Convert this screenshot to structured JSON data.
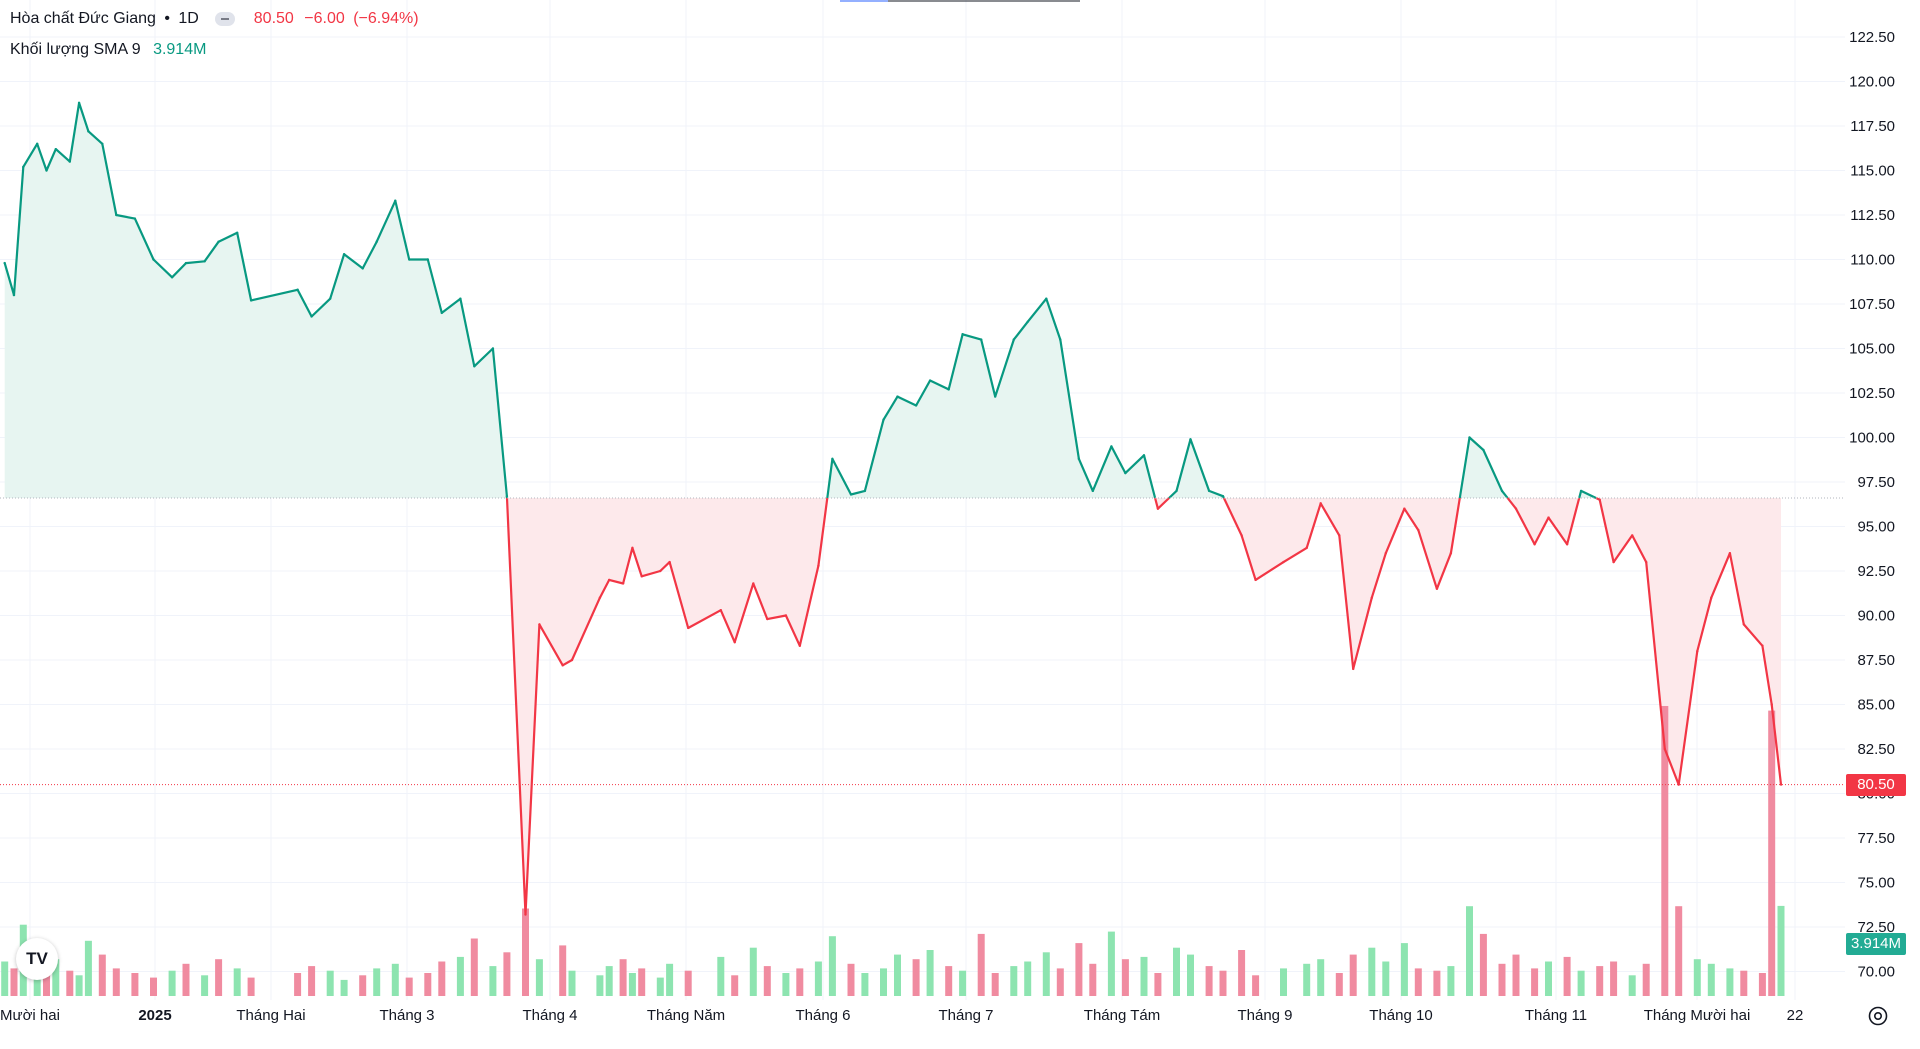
{
  "legend": {
    "symbol": "Hòa chất Đức Giang",
    "interval": "1D",
    "last_price": "80.50",
    "change": "−6.00",
    "change_pct": "(−6.94%)",
    "volume_label": "Khối lượng SMA 9",
    "volume_value": "3.914M"
  },
  "price_scale": {
    "labels": [
      "122.50",
      "120.00",
      "117.50",
      "115.00",
      "112.50",
      "110.00",
      "107.50",
      "105.00",
      "102.50",
      "100.00",
      "97.50",
      "95.00",
      "92.50",
      "90.00",
      "87.50",
      "85.00",
      "82.50",
      "80.00",
      "77.50",
      "75.00",
      "72.50",
      "70.00"
    ],
    "last_price_tag": "80.50",
    "volume_tag": "3.914M"
  },
  "time_scale": {
    "labels": [
      "Mười hai",
      "2025",
      "Tháng Hai",
      "Tháng 3",
      "Tháng 4",
      "Tháng Năm",
      "Tháng 6",
      "Tháng 7",
      "Tháng Tám",
      "Tháng 9",
      "Tháng 10",
      "Tháng 11",
      "Tháng Mười hai",
      "22"
    ]
  },
  "colors": {
    "up_line": "#089981",
    "down_line": "#f23645",
    "up_fill": "#e7f5f1",
    "down_fill": "#fde9eb",
    "vol_up": "#8de4b0",
    "vol_down": "#f08ba0",
    "grid": "#f0f3fa"
  },
  "icons": [
    "tradingview-logo-icon",
    "status-pill-icon",
    "settings-gear-icon"
  ],
  "chart_data": {
    "type": "line",
    "title": "Hòa chất Đức Giang",
    "baseline": 96.6,
    "last_value": 80.5,
    "ylim": [
      68.5,
      124.0
    ],
    "x_axis": "date",
    "series": [
      {
        "name": "Hòa chất Đức Giang",
        "x": [
          "2024-12-02",
          "2024-12-04",
          "2024-12-06",
          "2024-12-09",
          "2024-12-11",
          "2024-12-13",
          "2024-12-16",
          "2024-12-18",
          "2024-12-20",
          "2024-12-23",
          "2024-12-26",
          "2024-12-30",
          "2025-01-03",
          "2025-01-07",
          "2025-01-10",
          "2025-01-14",
          "2025-01-17",
          "2025-01-21",
          "2025-01-24",
          "2025-02-03",
          "2025-02-06",
          "2025-02-10",
          "2025-02-13",
          "2025-02-17",
          "2025-02-20",
          "2025-02-24",
          "2025-02-27",
          "2025-03-03",
          "2025-03-06",
          "2025-03-10",
          "2025-03-13",
          "2025-03-17",
          "2025-03-20",
          "2025-03-24",
          "2025-03-27",
          "2025-04-01",
          "2025-04-03",
          "2025-04-09",
          "2025-04-11",
          "2025-04-14",
          "2025-04-16",
          "2025-04-18",
          "2025-04-22",
          "2025-04-24",
          "2025-04-28",
          "2025-05-05",
          "2025-05-08",
          "2025-05-12",
          "2025-05-15",
          "2025-05-19",
          "2025-05-22",
          "2025-05-26",
          "2025-05-29",
          "2025-06-02",
          "2025-06-05",
          "2025-06-09",
          "2025-06-12",
          "2025-06-16",
          "2025-06-19",
          "2025-06-23",
          "2025-06-26",
          "2025-06-30",
          "2025-07-03",
          "2025-07-07",
          "2025-07-10",
          "2025-07-14",
          "2025-07-17",
          "2025-07-21",
          "2025-07-24",
          "2025-07-28",
          "2025-07-31",
          "2025-08-04",
          "2025-08-07",
          "2025-08-11",
          "2025-08-14",
          "2025-08-18",
          "2025-08-21",
          "2025-08-25",
          "2025-08-28",
          "2025-09-03",
          "2025-09-08",
          "2025-09-11",
          "2025-09-15",
          "2025-09-18",
          "2025-09-22",
          "2025-09-25",
          "2025-09-29",
          "2025-10-02",
          "2025-10-06",
          "2025-10-09",
          "2025-10-13",
          "2025-10-16",
          "2025-10-20",
          "2025-10-23",
          "2025-10-27",
          "2025-10-30",
          "2025-11-03",
          "2025-11-06",
          "2025-11-10",
          "2025-11-13",
          "2025-11-17",
          "2025-11-20",
          "2025-11-24",
          "2025-11-27",
          "2025-12-01",
          "2025-12-04",
          "2025-12-08",
          "2025-12-11",
          "2025-12-15",
          "2025-12-17",
          "2025-12-19"
        ],
        "values": [
          109.8,
          108.0,
          115.2,
          116.5,
          115.0,
          116.2,
          115.5,
          118.8,
          117.2,
          116.5,
          112.5,
          112.3,
          110.0,
          109.0,
          109.8,
          109.9,
          111.0,
          111.5,
          107.7,
          108.3,
          106.8,
          107.8,
          110.3,
          109.5,
          111.0,
          113.3,
          110.0,
          110.0,
          107.0,
          107.8,
          104.0,
          105.0,
          96.7,
          73.2,
          89.5,
          87.2,
          87.5,
          91.0,
          92.0,
          91.8,
          93.8,
          92.2,
          92.5,
          93.0,
          89.3,
          90.3,
          88.5,
          91.8,
          89.8,
          90.0,
          88.3,
          92.8,
          98.8,
          96.8,
          97.0,
          101.0,
          102.3,
          101.8,
          103.2,
          102.7,
          105.8,
          105.5,
          102.3,
          105.5,
          106.5,
          107.8,
          105.5,
          98.8,
          97.0,
          99.5,
          98.0,
          99.0,
          96.0,
          97.0,
          99.9,
          97.0,
          96.7,
          94.5,
          92.0,
          93.0,
          93.8,
          96.3,
          94.5,
          87.0,
          91.0,
          93.5,
          96.0,
          94.8,
          91.5,
          93.5,
          100.0,
          99.3,
          97.0,
          96.0,
          94.0,
          95.5,
          94.0,
          97.0,
          96.5,
          93.0,
          94.5,
          93.0,
          82.5,
          80.5,
          88.0,
          91.0,
          93.5,
          89.5,
          88.3,
          85.0,
          80.5
        ],
        "stroke_up": "#089981",
        "stroke_down": "#f23645"
      }
    ],
    "volume": {
      "name": "Khối lượng SMA 9",
      "unit": "M",
      "values": [
        1.5,
        1.2,
        3.1,
        1.0,
        1.3,
        1.6,
        1.1,
        0.9,
        2.4,
        1.8,
        1.2,
        1.0,
        0.8,
        1.1,
        1.4,
        0.9,
        1.6,
        1.2,
        0.8,
        1.0,
        1.3,
        1.1,
        0.7,
        0.9,
        1.2,
        1.4,
        0.8,
        1.0,
        1.5,
        1.7,
        2.5,
        1.3,
        1.9,
        3.8,
        1.6,
        2.2,
        1.1,
        0.9,
        1.3,
        1.6,
        1.0,
        1.2,
        0.8,
        1.4,
        1.1,
        1.7,
        0.9,
        2.1,
        1.3,
        1.0,
        1.2,
        1.5,
        2.6,
        1.4,
        1.0,
        1.2,
        1.8,
        1.6,
        2.0,
        1.3,
        1.1,
        2.7,
        1.0,
        1.3,
        1.5,
        1.9,
        1.2,
        2.3,
        1.4,
        2.8,
        1.6,
        1.7,
        1.0,
        2.1,
        1.8,
        1.3,
        1.1,
        2.0,
        0.9,
        1.2,
        1.4,
        1.6,
        1.0,
        1.8,
        2.1,
        1.5,
        2.3,
        1.2,
        1.1,
        1.3,
        3.9,
        2.7,
        1.4,
        1.8,
        1.2,
        1.5,
        1.7,
        1.1,
        1.3,
        1.5,
        0.9,
        1.4,
        12.6,
        3.9,
        1.6,
        1.4,
        1.2,
        1.1,
        1.0,
        12.4,
        3.914
      ],
      "up": [
        true,
        false,
        true,
        true,
        false,
        true,
        false,
        true,
        true,
        false,
        false,
        false,
        false,
        true,
        false,
        true,
        false,
        true,
        false,
        false,
        false,
        true,
        true,
        false,
        true,
        true,
        false,
        false,
        false,
        true,
        false,
        true,
        false,
        false,
        true,
        false,
        true,
        true,
        true,
        false,
        true,
        false,
        true,
        true,
        false,
        true,
        false,
        true,
        false,
        true,
        false,
        true,
        true,
        false,
        true,
        true,
        true,
        false,
        true,
        false,
        true,
        false,
        false,
        true,
        true,
        true,
        false,
        false,
        false,
        true,
        false,
        true,
        false,
        true,
        true,
        false,
        false,
        false,
        false,
        true,
        true,
        true,
        false,
        false,
        true,
        true,
        true,
        false,
        false,
        true,
        true,
        false,
        false,
        false,
        false,
        true,
        false,
        true,
        false,
        false,
        true,
        false,
        false,
        false,
        true,
        true,
        true,
        false,
        false,
        false,
        true
      ]
    }
  }
}
